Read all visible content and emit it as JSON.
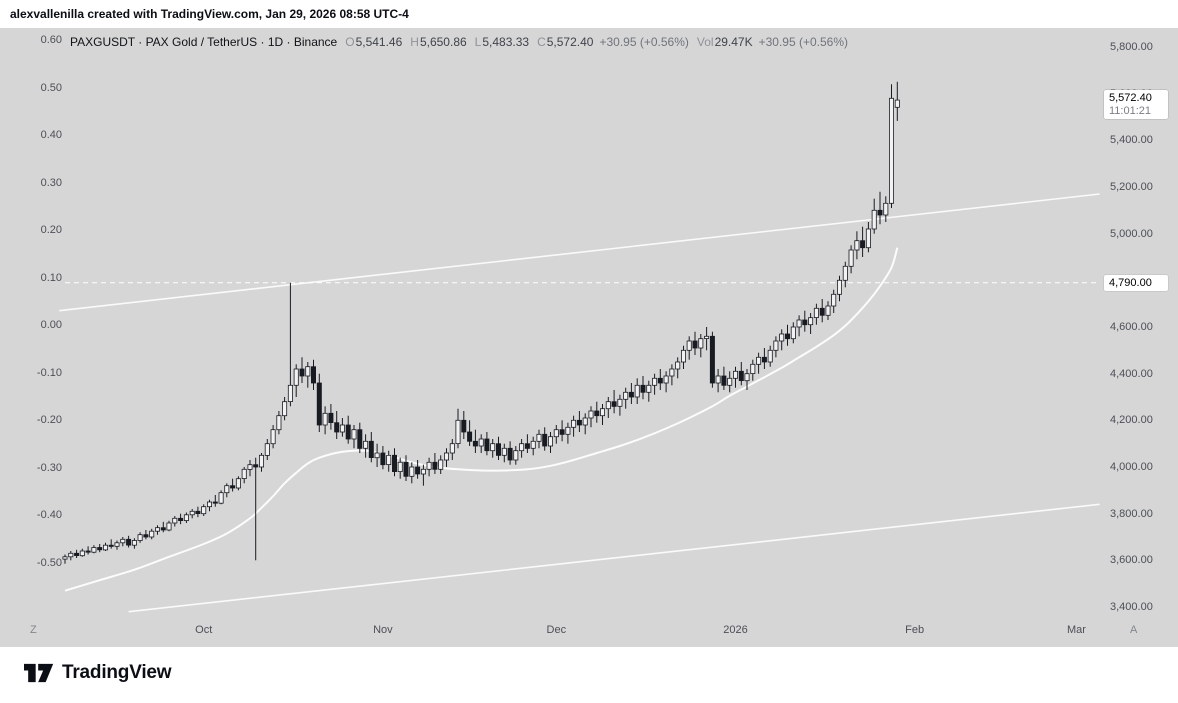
{
  "banner": {
    "text": "alexvallenilla created with TradingView.com, Jan 29, 2026 08:58 UTC-4"
  },
  "legend": {
    "title": "PAXGUSDT · PAX Gold / TetherUS · 1D · Binance",
    "ohlc": [
      {
        "label": "O",
        "value": "5,541.46"
      },
      {
        "label": "H",
        "value": "5,650.86"
      },
      {
        "label": "L",
        "value": "5,483.33"
      },
      {
        "label": "C",
        "value": "5,572.40"
      }
    ],
    "change": "+30.95 (+0.56%)",
    "vol_label": "Vol",
    "vol_value": "29.47K",
    "vol_change": "+30.95 (+0.56%)"
  },
  "left_axis": {
    "ticks": [
      {
        "label": "0.60",
        "value": 0.6
      },
      {
        "label": "0.50",
        "value": 0.5
      },
      {
        "label": "0.40",
        "value": 0.4
      },
      {
        "label": "0.30",
        "value": 0.3
      },
      {
        "label": "0.20",
        "value": 0.2
      },
      {
        "label": "0.10",
        "value": 0.1
      },
      {
        "label": "0.00",
        "value": 0.0
      },
      {
        "label": "-0.10",
        "value": -0.1
      },
      {
        "label": "-0.20",
        "value": -0.2
      },
      {
        "label": "-0.30",
        "value": -0.3
      },
      {
        "label": "-0.40",
        "value": -0.4
      },
      {
        "label": "-0.50",
        "value": -0.5
      }
    ]
  },
  "right_axis": {
    "ticks": [
      {
        "label": "5,800.00",
        "price": 5800
      },
      {
        "label": "5,600.00",
        "price": 5600
      },
      {
        "label": "5,400.00",
        "price": 5400
      },
      {
        "label": "5,200.00",
        "price": 5200
      },
      {
        "label": "5,000.00",
        "price": 5000
      },
      {
        "label": "4,600.00",
        "price": 4600
      },
      {
        "label": "4,400.00",
        "price": 4400
      },
      {
        "label": "4,200.00",
        "price": 4200
      },
      {
        "label": "4,000.00",
        "price": 4000
      },
      {
        "label": "3,800.00",
        "price": 3800
      },
      {
        "label": "3,600.00",
        "price": 3600
      },
      {
        "label": "3,400.00",
        "price": 3400
      }
    ]
  },
  "price_label": {
    "value": "5,572.40",
    "countdown": "11:01:21"
  },
  "price_line": {
    "label": "4,790.00"
  },
  "time_axis": {
    "left_corner": "Z",
    "right_corner": "A",
    "labels": [
      {
        "label": "Oct",
        "index": 24
      },
      {
        "label": "Nov",
        "index": 55
      },
      {
        "label": "Dec",
        "index": 85
      },
      {
        "label": "2026",
        "index": 116
      },
      {
        "label": "Feb",
        "index": 147
      },
      {
        "label": "Mar",
        "index": 175
      }
    ]
  },
  "footer": {
    "brand": "TradingView"
  },
  "chart_data": {
    "type": "candlestick",
    "symbol": "PAXGUSDT",
    "name": "PAX Gold / TetherUS",
    "interval": "1D",
    "exchange": "Binance",
    "ohlc_current": {
      "open": 5541.46,
      "high": 5650.86,
      "low": 5483.33,
      "close": 5572.4,
      "change": 30.95,
      "change_pct": 0.56,
      "volume": "29.47K"
    },
    "ylim": [
      3340,
      5885
    ],
    "left_scale_range": [
      -0.5,
      0.6
    ],
    "grid": false,
    "price_line": {
      "price": 4790,
      "style": "dashed",
      "color": "#ffffff"
    },
    "trendlines": [
      {
        "name": "upper-channel-line",
        "points": [
          [
            -1,
            4670
          ],
          [
            179,
            5170
          ]
        ]
      },
      {
        "name": "lower-channel-line",
        "points": [
          [
            11,
            3380
          ],
          [
            179,
            3840
          ]
        ]
      }
    ],
    "ma_points": [
      [
        0,
        3470
      ],
      [
        6,
        3515
      ],
      [
        12,
        3560
      ],
      [
        18,
        3615
      ],
      [
        24,
        3670
      ],
      [
        28,
        3715
      ],
      [
        32,
        3780
      ],
      [
        34,
        3825
      ],
      [
        36,
        3875
      ],
      [
        38,
        3930
      ],
      [
        40,
        3975
      ],
      [
        42,
        4015
      ],
      [
        44,
        4040
      ],
      [
        48,
        4065
      ],
      [
        52,
        4070
      ],
      [
        56,
        4050
      ],
      [
        60,
        4020
      ],
      [
        64,
        4000
      ],
      [
        68,
        3990
      ],
      [
        72,
        3985
      ],
      [
        76,
        3985
      ],
      [
        80,
        3990
      ],
      [
        84,
        4005
      ],
      [
        88,
        4030
      ],
      [
        92,
        4060
      ],
      [
        96,
        4090
      ],
      [
        100,
        4125
      ],
      [
        104,
        4165
      ],
      [
        108,
        4210
      ],
      [
        112,
        4260
      ],
      [
        115,
        4305
      ],
      [
        118,
        4345
      ],
      [
        121,
        4385
      ],
      [
        124,
        4425
      ],
      [
        127,
        4470
      ],
      [
        130,
        4515
      ],
      [
        133,
        4565
      ],
      [
        135,
        4605
      ],
      [
        137,
        4655
      ],
      [
        139,
        4710
      ],
      [
        141,
        4775
      ],
      [
        143,
        4855
      ],
      [
        144,
        4940
      ]
    ],
    "candles": [
      [
        3605,
        3625,
        3585,
        3615
      ],
      [
        3615,
        3640,
        3600,
        3630
      ],
      [
        3630,
        3645,
        3610,
        3620
      ],
      [
        3620,
        3650,
        3615,
        3640
      ],
      [
        3640,
        3660,
        3625,
        3635
      ],
      [
        3635,
        3665,
        3630,
        3655
      ],
      [
        3655,
        3670,
        3635,
        3645
      ],
      [
        3645,
        3675,
        3640,
        3665
      ],
      [
        3665,
        3690,
        3650,
        3660
      ],
      [
        3660,
        3685,
        3645,
        3675
      ],
      [
        3675,
        3700,
        3660,
        3690
      ],
      [
        3690,
        3705,
        3655,
        3665
      ],
      [
        3665,
        3695,
        3650,
        3685
      ],
      [
        3685,
        3720,
        3675,
        3710
      ],
      [
        3710,
        3730,
        3690,
        3700
      ],
      [
        3700,
        3735,
        3690,
        3725
      ],
      [
        3725,
        3750,
        3710,
        3740
      ],
      [
        3740,
        3765,
        3720,
        3730
      ],
      [
        3730,
        3770,
        3725,
        3760
      ],
      [
        3760,
        3790,
        3745,
        3780
      ],
      [
        3780,
        3800,
        3755,
        3770
      ],
      [
        3770,
        3805,
        3760,
        3795
      ],
      [
        3795,
        3820,
        3780,
        3810
      ],
      [
        3810,
        3830,
        3785,
        3800
      ],
      [
        3800,
        3840,
        3790,
        3830
      ],
      [
        3830,
        3860,
        3810,
        3850
      ],
      [
        3850,
        3880,
        3830,
        3845
      ],
      [
        3845,
        3900,
        3840,
        3890
      ],
      [
        3890,
        3930,
        3870,
        3920
      ],
      [
        3920,
        3950,
        3895,
        3910
      ],
      [
        3910,
        3960,
        3900,
        3950
      ],
      [
        3950,
        4000,
        3930,
        3990
      ],
      [
        3990,
        4030,
        3960,
        4010
      ],
      [
        4010,
        4040,
        3600,
        4000
      ],
      [
        4000,
        4060,
        3980,
        4050
      ],
      [
        4050,
        4120,
        4030,
        4100
      ],
      [
        4100,
        4180,
        4080,
        4160
      ],
      [
        4160,
        4240,
        4140,
        4220
      ],
      [
        4220,
        4300,
        4200,
        4280
      ],
      [
        4280,
        4790,
        4260,
        4350
      ],
      [
        4350,
        4440,
        4300,
        4420
      ],
      [
        4420,
        4470,
        4360,
        4390
      ],
      [
        4390,
        4450,
        4340,
        4430
      ],
      [
        4430,
        4460,
        4330,
        4360
      ],
      [
        4360,
        4400,
        4150,
        4180
      ],
      [
        4180,
        4260,
        4140,
        4230
      ],
      [
        4230,
        4270,
        4160,
        4190
      ],
      [
        4190,
        4240,
        4120,
        4150
      ],
      [
        4150,
        4210,
        4130,
        4180
      ],
      [
        4180,
        4220,
        4100,
        4120
      ],
      [
        4120,
        4180,
        4080,
        4160
      ],
      [
        4160,
        4190,
        4060,
        4080
      ],
      [
        4080,
        4140,
        4040,
        4110
      ],
      [
        4110,
        4150,
        4020,
        4040
      ],
      [
        4040,
        4100,
        4000,
        4060
      ],
      [
        4060,
        4090,
        3990,
        4010
      ],
      [
        4010,
        4070,
        3980,
        4050
      ],
      [
        4050,
        4080,
        3960,
        3980
      ],
      [
        3980,
        4040,
        3950,
        4020
      ],
      [
        4020,
        4050,
        3940,
        3960
      ],
      [
        3960,
        4020,
        3930,
        4000
      ],
      [
        4000,
        4030,
        3950,
        3970
      ],
      [
        3970,
        4010,
        3920,
        3990
      ],
      [
        3990,
        4040,
        3960,
        4020
      ],
      [
        4020,
        4060,
        3970,
        3990
      ],
      [
        3990,
        4050,
        3970,
        4030
      ],
      [
        4030,
        4080,
        4000,
        4060
      ],
      [
        4060,
        4120,
        4030,
        4100
      ],
      [
        4100,
        4250,
        4080,
        4200
      ],
      [
        4200,
        4240,
        4120,
        4150
      ],
      [
        4150,
        4200,
        4090,
        4110
      ],
      [
        4110,
        4160,
        4060,
        4090
      ],
      [
        4090,
        4140,
        4060,
        4120
      ],
      [
        4120,
        4150,
        4050,
        4070
      ],
      [
        4070,
        4120,
        4040,
        4100
      ],
      [
        4100,
        4130,
        4030,
        4050
      ],
      [
        4050,
        4100,
        4020,
        4080
      ],
      [
        4080,
        4110,
        4010,
        4030
      ],
      [
        4030,
        4090,
        4010,
        4070
      ],
      [
        4070,
        4120,
        4040,
        4100
      ],
      [
        4100,
        4140,
        4060,
        4080
      ],
      [
        4080,
        4130,
        4050,
        4110
      ],
      [
        4110,
        4160,
        4080,
        4140
      ],
      [
        4140,
        4170,
        4070,
        4090
      ],
      [
        4090,
        4150,
        4060,
        4130
      ],
      [
        4130,
        4180,
        4100,
        4160
      ],
      [
        4160,
        4200,
        4110,
        4140
      ],
      [
        4140,
        4190,
        4100,
        4170
      ],
      [
        4170,
        4220,
        4130,
        4200
      ],
      [
        4200,
        4240,
        4150,
        4180
      ],
      [
        4180,
        4230,
        4140,
        4210
      ],
      [
        4210,
        4260,
        4170,
        4240
      ],
      [
        4240,
        4280,
        4190,
        4220
      ],
      [
        4220,
        4270,
        4180,
        4250
      ],
      [
        4250,
        4300,
        4210,
        4280
      ],
      [
        4280,
        4330,
        4230,
        4260
      ],
      [
        4260,
        4310,
        4220,
        4290
      ],
      [
        4290,
        4340,
        4250,
        4320
      ],
      [
        4320,
        4360,
        4270,
        4300
      ],
      [
        4300,
        4380,
        4270,
        4350
      ],
      [
        4350,
        4390,
        4290,
        4320
      ],
      [
        4320,
        4370,
        4280,
        4350
      ],
      [
        4350,
        4400,
        4310,
        4380
      ],
      [
        4380,
        4420,
        4330,
        4360
      ],
      [
        4360,
        4410,
        4320,
        4390
      ],
      [
        4390,
        4440,
        4350,
        4420
      ],
      [
        4420,
        4470,
        4380,
        4450
      ],
      [
        4450,
        4520,
        4420,
        4500
      ],
      [
        4500,
        4560,
        4460,
        4540
      ],
      [
        4540,
        4580,
        4480,
        4510
      ],
      [
        4510,
        4570,
        4470,
        4550
      ],
      [
        4550,
        4600,
        4500,
        4560
      ],
      [
        4560,
        4580,
        4340,
        4360
      ],
      [
        4360,
        4420,
        4320,
        4390
      ],
      [
        4390,
        4430,
        4330,
        4350
      ],
      [
        4350,
        4410,
        4320,
        4380
      ],
      [
        4380,
        4430,
        4340,
        4410
      ],
      [
        4410,
        4450,
        4350,
        4370
      ],
      [
        4370,
        4420,
        4330,
        4400
      ],
      [
        4400,
        4460,
        4370,
        4440
      ],
      [
        4440,
        4490,
        4400,
        4470
      ],
      [
        4470,
        4510,
        4420,
        4450
      ],
      [
        4450,
        4520,
        4430,
        4500
      ],
      [
        4500,
        4560,
        4470,
        4540
      ],
      [
        4540,
        4590,
        4500,
        4570
      ],
      [
        4570,
        4610,
        4520,
        4550
      ],
      [
        4550,
        4620,
        4530,
        4600
      ],
      [
        4600,
        4650,
        4560,
        4630
      ],
      [
        4630,
        4670,
        4580,
        4610
      ],
      [
        4610,
        4660,
        4570,
        4640
      ],
      [
        4640,
        4700,
        4610,
        4680
      ],
      [
        4680,
        4720,
        4620,
        4650
      ],
      [
        4650,
        4710,
        4630,
        4690
      ],
      [
        4690,
        4760,
        4660,
        4740
      ],
      [
        4740,
        4820,
        4710,
        4800
      ],
      [
        4800,
        4880,
        4770,
        4860
      ],
      [
        4860,
        4950,
        4830,
        4930
      ],
      [
        4930,
        5010,
        4890,
        4970
      ],
      [
        4970,
        5030,
        4900,
        4940
      ],
      [
        4940,
        5050,
        4920,
        5020
      ],
      [
        5020,
        5150,
        5000,
        5100
      ],
      [
        5100,
        5180,
        5040,
        5080
      ],
      [
        5080,
        5160,
        5050,
        5130
      ],
      [
        5130,
        5640,
        5110,
        5580
      ],
      [
        5541.46,
        5650.86,
        5483.33,
        5572.4
      ]
    ],
    "colors": {
      "up": "#f2f2f2",
      "down": "#181b22",
      "wick": "#181b22",
      "ma": "#fcfcfc",
      "trendline": "#fafafa",
      "background": "#d6d6d6"
    }
  }
}
